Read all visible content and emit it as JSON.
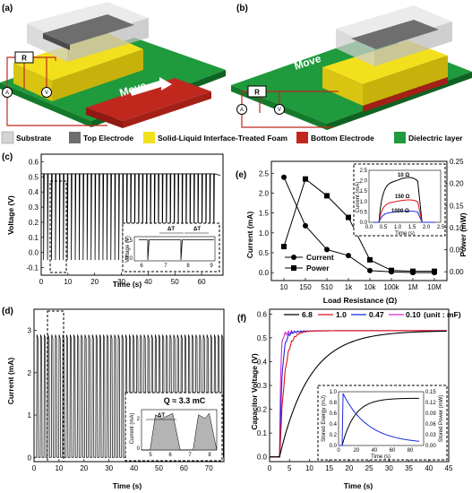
{
  "panels": {
    "a": {
      "label": "(a)",
      "resistor": "R",
      "ammeter": "A",
      "voltmeter": "V",
      "arrow": "Move"
    },
    "b": {
      "label": "(b)",
      "resistor": "R",
      "ammeter": "A",
      "voltmeter": "V",
      "arrow": "Move"
    }
  },
  "legend": [
    {
      "label": "Substrate",
      "color": "#d4d4d4"
    },
    {
      "label": "Top  Electrode",
      "color": "#6e6e6e"
    },
    {
      "label": "Solid-Liquid Interface-Treated Foam",
      "color": "#f2e01d"
    },
    {
      "label": "Bottom Electrode",
      "color": "#c0281e"
    },
    {
      "label": "Dielectric layer",
      "color": "#1f9a3c"
    }
  ],
  "chart_data": [
    {
      "panel": "(c)",
      "type": "line",
      "xlabel": "Time (s)",
      "ylabel": "Voltage (V)",
      "xlim": [
        0,
        68
      ],
      "ylim": [
        -0.15,
        0.65
      ],
      "xticks": [
        "0",
        "10",
        "20",
        "30",
        "40",
        "50",
        "60"
      ],
      "yticks": [
        "-0.1",
        "0.0",
        "0.1",
        "0.2",
        "0.3",
        "0.4",
        "0.5",
        "0.6"
      ],
      "baseline": 0.52,
      "pulse_min": -0.05,
      "pulse_period_s": 1.48,
      "inset": {
        "ylabel": "Voltage (V)",
        "yticks": [
          "0.0",
          "0.5"
        ],
        "xticks": [
          "6",
          "7",
          "8",
          "9"
        ],
        "annotations": [
          "ΔT",
          "ΔT"
        ]
      }
    },
    {
      "panel": "(d)",
      "type": "line",
      "xlabel": "Time (s)",
      "ylabel": "Current (mA)",
      "xlim": [
        0,
        76
      ],
      "ylim": [
        -0.1,
        3.5
      ],
      "xticks": [
        "0",
        "10",
        "20",
        "30",
        "40",
        "50",
        "60",
        "70"
      ],
      "yticks": [
        "0",
        "1",
        "2",
        "3"
      ],
      "pulse_peak": 2.9,
      "pulse_period_s": 1.48,
      "inset": {
        "ylabel": "Current (mA)",
        "yticks": [
          "0",
          "2"
        ],
        "xticks": [
          "5",
          "6",
          "7",
          "8"
        ],
        "annotations": [
          "ΔT",
          "Q ≈ 3.3 mC"
        ]
      }
    },
    {
      "panel": "(e)",
      "type": "line",
      "xlabel": "Load Resistance (Ω)",
      "ylabel": "Current (mA)",
      "y2label": "Power (mW)",
      "categories": [
        "10",
        "150",
        "510",
        "1k",
        "10k",
        "100k",
        "1M",
        "10M"
      ],
      "ylim": [
        -0.2,
        2.8
      ],
      "y2lim": [
        -0.02,
        0.25
      ],
      "yticks": [
        "0.0",
        "0.5",
        "1.0",
        "1.5",
        "2.0",
        "2.5"
      ],
      "y2ticks": [
        "0.00",
        "0.05",
        "0.10",
        "0.15",
        "0.20",
        "0.25"
      ],
      "series": [
        {
          "name": "Current",
          "marker": "circle",
          "axis": "left",
          "values": [
            2.4,
            1.18,
            0.58,
            0.43,
            0.05,
            0.02,
            0.0,
            0.0
          ]
        },
        {
          "name": "Power",
          "marker": "square",
          "axis": "right",
          "values": [
            0.057,
            0.21,
            0.172,
            0.123,
            0.027,
            0.003,
            0.001,
            0.001
          ]
        }
      ],
      "inset": {
        "ylabel": "Current (mA)",
        "xlabel": "Time (s)",
        "xticks": [
          "0.0",
          "0.5",
          "1.0",
          "1.5",
          "2.0",
          "2.5"
        ],
        "yticks": [
          "0.0",
          "0.5",
          "1.0",
          "1.5",
          "2.0",
          "2.5"
        ],
        "series": [
          {
            "name": "10 Ω",
            "color": "#000000"
          },
          {
            "name": "150 Ω",
            "color": "#e0101a"
          },
          {
            "name": "1000 Ω",
            "color": "#1a2ae0"
          }
        ]
      }
    },
    {
      "panel": "(f)",
      "type": "line",
      "xlabel": "Time (s)",
      "ylabel": "Capacitor Voltage (V)",
      "xlim": [
        0,
        45
      ],
      "ylim": [
        -0.02,
        0.62
      ],
      "xticks": [
        "0",
        "5",
        "10",
        "15",
        "20",
        "25",
        "30",
        "35",
        "40",
        "45"
      ],
      "yticks": [
        "0.0",
        "0.1",
        "0.2",
        "0.3",
        "0.4",
        "0.5",
        "0.6"
      ],
      "legend_title": "(unit : mF)",
      "series": [
        {
          "name": "6.8",
          "color": "#000000",
          "tau": 7.5
        },
        {
          "name": "1.0",
          "color": "#e0101a",
          "tau": 1.2
        },
        {
          "name": "0.47",
          "color": "#1a2ae0",
          "tau": 0.6
        },
        {
          "name": "0.10",
          "color": "#d42ad4",
          "tau": 0.25
        }
      ],
      "inset": {
        "ylabel": "Stored Energy (mJ)",
        "y2label": "Stored Power (mW)",
        "xlabel": "Time (s)",
        "xticks": [
          "0",
          "20",
          "40",
          "60",
          "80"
        ],
        "yticks": [
          "0.0",
          "0.2",
          "0.4",
          "0.6",
          "0.8",
          "1.0"
        ],
        "y2ticks": [
          "0.00",
          "0.03",
          "0.06",
          "0.09",
          "0.12",
          "0.15"
        ]
      }
    }
  ]
}
